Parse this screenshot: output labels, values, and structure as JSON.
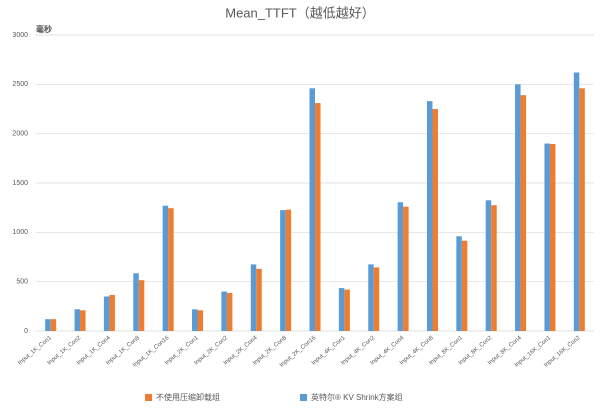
{
  "chart_data": {
    "type": "bar",
    "title": "Mean_TTFT（越低越好）",
    "y_label": "毫秒",
    "categories": [
      "Input_1K_Con1",
      "Input_1K_Con2",
      "Input_1K_Con4",
      "Input_1K_Con8",
      "Input_1K_Con16",
      "Input_2K_Con1",
      "Input_2K_Con2",
      "Input_2K_Con4",
      "Input_2K_Con8",
      "Input_2K_Con16",
      "Input_4K_Con1",
      "Input_4K_Con2",
      "Input_4K_Con4",
      "Input_4K_Con8",
      "Input_8K_Con1",
      "Input_8K_Con2",
      "Input_8K_Con4",
      "Input_16K_Con1",
      "Input_16K_Con2"
    ],
    "series": [
      {
        "name": "英特尔® KV Shrink方案组",
        "color": "#5b9bd5",
        "values": [
          120,
          220,
          350,
          585,
          1270,
          220,
          400,
          675,
          1225,
          2460,
          435,
          675,
          1305,
          2330,
          960,
          1325,
          2500,
          1900,
          2620
        ]
      },
      {
        "name": "不使用压缩卸载组",
        "color": "#ed7d31",
        "values": [
          120,
          210,
          365,
          515,
          1245,
          210,
          385,
          630,
          1230,
          2310,
          420,
          645,
          1260,
          2250,
          915,
          1275,
          2390,
          1895,
          2460
        ]
      }
    ],
    "ylim": [
      0,
      3000
    ],
    "yticks": [
      0,
      500,
      1000,
      1500,
      2000,
      2500,
      3000
    ],
    "grid": true
  }
}
